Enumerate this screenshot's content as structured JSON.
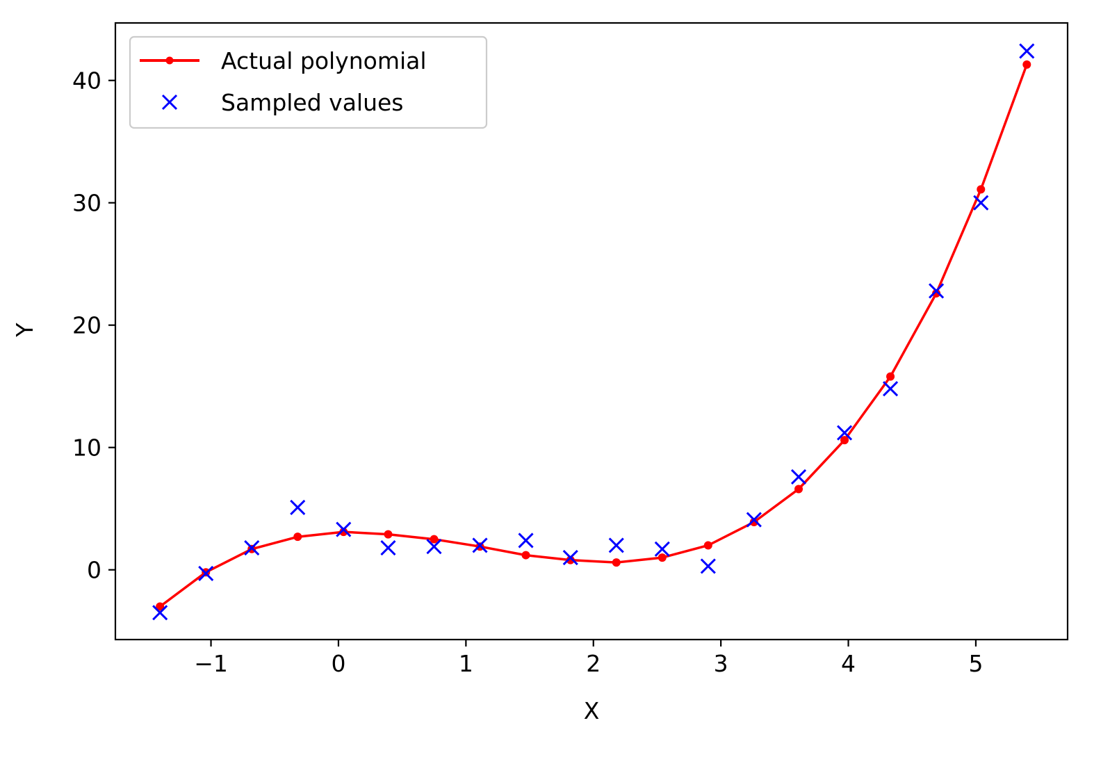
{
  "chart_data": {
    "type": "line",
    "title": "",
    "xlabel": "X",
    "ylabel": "Y",
    "xlim": [
      -1.75,
      5.72
    ],
    "ylim": [
      -5.7,
      44.7
    ],
    "xticks": [
      -1,
      0,
      1,
      2,
      3,
      4,
      5
    ],
    "xtick_labels": [
      "−1",
      "0",
      "1",
      "2",
      "3",
      "4",
      "5"
    ],
    "yticks": [
      0,
      10,
      20,
      30,
      40
    ],
    "ytick_labels": [
      "0",
      "10",
      "20",
      "30",
      "40"
    ],
    "grid": false,
    "legend_position": "upper-left",
    "series": [
      {
        "name": "Actual polynomial",
        "style": "line-with-dot-markers",
        "color": "#ff0000",
        "x": [
          -1.4,
          -1.04,
          -0.68,
          -0.32,
          0.04,
          0.39,
          0.75,
          1.11,
          1.47,
          1.82,
          2.18,
          2.54,
          2.9,
          3.26,
          3.61,
          3.97,
          4.33,
          4.69,
          5.04,
          5.4
        ],
        "y": [
          -3.0,
          -0.2,
          1.7,
          2.7,
          3.1,
          2.9,
          2.5,
          1.9,
          1.2,
          0.8,
          0.6,
          1.0,
          2.0,
          3.9,
          6.6,
          10.6,
          15.8,
          22.6,
          31.1,
          41.3
        ]
      },
      {
        "name": "Sampled values",
        "style": "x-markers",
        "color": "#0000ff",
        "x": [
          -1.4,
          -1.04,
          -0.68,
          -0.32,
          0.04,
          0.39,
          0.75,
          1.11,
          1.47,
          1.82,
          2.18,
          2.54,
          2.9,
          3.26,
          3.61,
          3.97,
          4.33,
          4.69,
          5.04,
          5.4
        ],
        "y": [
          -3.5,
          -0.3,
          1.8,
          5.1,
          3.3,
          1.8,
          1.9,
          2.0,
          2.4,
          1.0,
          2.0,
          1.7,
          0.3,
          4.1,
          7.6,
          11.2,
          14.8,
          22.8,
          30.0,
          42.4
        ]
      }
    ]
  }
}
